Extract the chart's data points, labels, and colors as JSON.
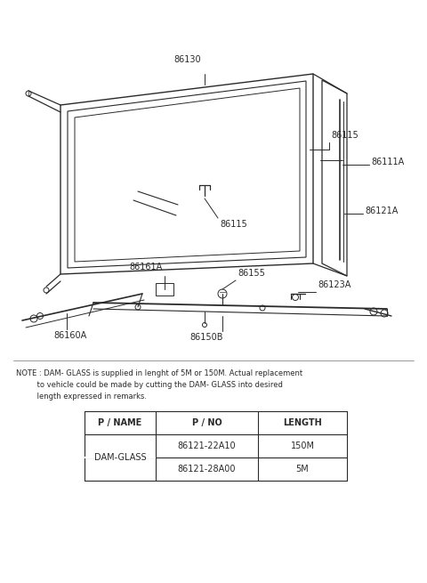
{
  "bg_color": "#ffffff",
  "line_color": "#2a2a2a",
  "note_text": "NOTE : DAM- GLASS is supplied in lenght of 5M or 150M. Actual replacement\n        to vehicle could be made by cutting the DAM- GLASS into desired\n        length expressed in remarks.",
  "table_headers": [
    "P / NAME",
    "P / NO",
    "LENGTH"
  ],
  "table_row1": [
    "DAM-GLASS",
    "86121-22A10",
    "150M"
  ],
  "table_row2": [
    "",
    "86121-28A00",
    "5M"
  ],
  "label_fs": 7.0,
  "lw": 0.9
}
